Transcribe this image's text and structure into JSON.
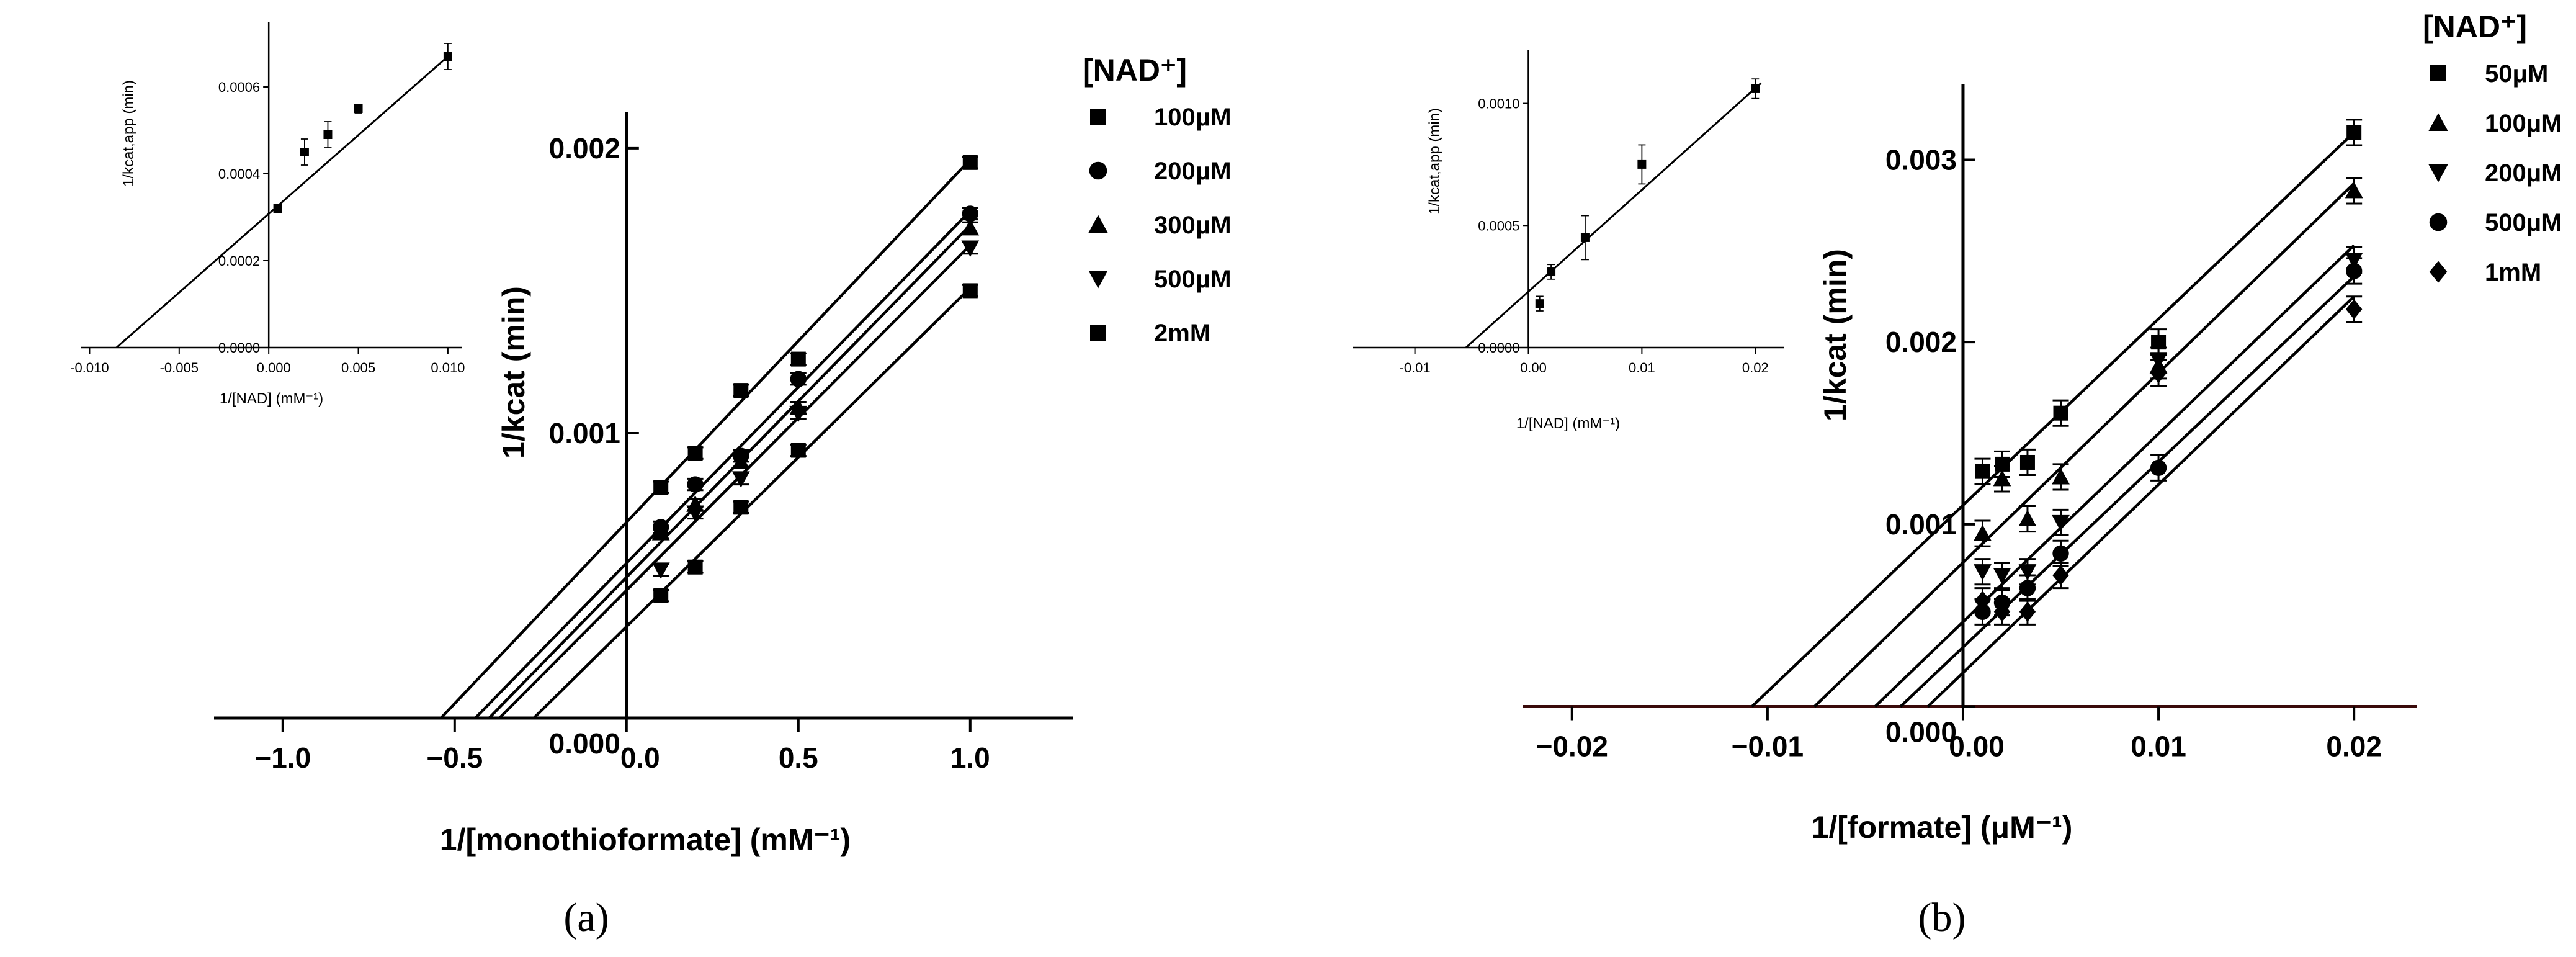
{
  "chart_data": [
    {
      "panel": "a",
      "type": "scatter",
      "panel_label": "(a)",
      "xlabel": "1/[monothioformate] (mM⁻¹)",
      "ylabel": "1/kcat (min)",
      "xlim": [
        -1.2,
        1.3
      ],
      "ylim": [
        -5e-05,
        0.00215
      ],
      "xticks": [
        {
          "v": -1.0,
          "label": "−1.0"
        },
        {
          "v": -0.5,
          "label": "−0.5"
        },
        {
          "v": 0.0,
          "label": "0.0"
        },
        {
          "v": 0.5,
          "label": "0.5"
        },
        {
          "v": 1.0,
          "label": "1.0"
        }
      ],
      "yticks": [
        {
          "v": 0.0,
          "label": "0.000"
        },
        {
          "v": 0.001,
          "label": "0.001"
        },
        {
          "v": 0.002,
          "label": "0.002"
        }
      ],
      "legend_title": "[NAD⁺]",
      "x": [
        0.1,
        0.2,
        0.333,
        0.5,
        1.0
      ],
      "series": [
        {
          "name": "100μM",
          "marker": "square",
          "fill": true,
          "values": [
            0.00081,
            0.00093,
            0.00115,
            0.00126,
            0.00195
          ],
          "err": 2e-05
        },
        {
          "name": "200μM",
          "marker": "circle",
          "fill": true,
          "values": [
            0.00067,
            0.00082,
            0.00092,
            0.00119,
            0.00177
          ],
          "err": 2e-05
        },
        {
          "name": "300μM",
          "marker": "triangle-up",
          "fill": true,
          "values": [
            0.00065,
            0.00075,
            0.0009,
            0.00109,
            0.00172
          ],
          "err": 2e-05
        },
        {
          "name": "500μM",
          "marker": "triangle-down",
          "fill": true,
          "values": [
            0.00052,
            0.00072,
            0.00084,
            0.00107,
            0.00165
          ],
          "err": 2e-05
        },
        {
          "name": "2mM",
          "marker": "square",
          "fill": true,
          "values": [
            0.00043,
            0.00053,
            0.00074,
            0.00094,
            0.0015
          ],
          "err": 2e-05
        }
      ],
      "fits": [
        {
          "xint": -0.54,
          "y1": 0.00196
        },
        {
          "xint": -0.44,
          "y1": 0.00178
        },
        {
          "xint": -0.4,
          "y1": 0.00173
        },
        {
          "xint": -0.37,
          "y1": 0.00166
        },
        {
          "xint": -0.27,
          "y1": 0.00151
        }
      ],
      "inset": {
        "xlabel": "1/[NAD] (mM⁻¹)",
        "ylabel": "1/kcat,app (min)",
        "xlim": [
          -0.0105,
          0.0108
        ],
        "ylim": [
          0.0,
          0.00075
        ],
        "xticks": [
          {
            "v": -0.01,
            "label": "-0.010"
          },
          {
            "v": -0.005,
            "label": "-0.005"
          },
          {
            "v": 0.0,
            "label": "0.000"
          },
          {
            "v": 0.005,
            "label": "0.005"
          },
          {
            "v": 0.01,
            "label": "0.010"
          }
        ],
        "yticks": [
          {
            "v": 0.0,
            "label": "0.0000"
          },
          {
            "v": 0.0002,
            "label": "0.0002"
          },
          {
            "v": 0.0004,
            "label": "0.0004"
          },
          {
            "v": 0.0006,
            "label": "0.0006"
          }
        ],
        "x": [
          0.0005,
          0.002,
          0.0033,
          0.005,
          0.01
        ],
        "values": [
          0.00032,
          0.00045,
          0.00049,
          0.00055,
          0.00067
        ],
        "err": [
          1e-05,
          3e-05,
          3e-05,
          1e-05,
          3e-05
        ],
        "fit": {
          "x0": -0.0085,
          "x1": 0.0101
        }
      }
    },
    {
      "panel": "b",
      "type": "scatter",
      "panel_label": "(b)",
      "xlabel": "1/[formate] (μM⁻¹)",
      "ylabel": "1/kcat (min)",
      "xlim": [
        -0.0225,
        0.0232
      ],
      "ylim": [
        -8e-05,
        0.0034
      ],
      "xticks": [
        {
          "v": -0.02,
          "label": "−0.02"
        },
        {
          "v": -0.01,
          "label": "−0.01"
        },
        {
          "v": 0.0,
          "label": "0.00"
        },
        {
          "v": 0.01,
          "label": "0.01"
        },
        {
          "v": 0.02,
          "label": "0.02"
        }
      ],
      "yticks": [
        {
          "v": 0.0,
          "label": "0.000"
        },
        {
          "v": 0.001,
          "label": "0.001"
        },
        {
          "v": 0.002,
          "label": "0.002"
        },
        {
          "v": 0.003,
          "label": "0.003"
        }
      ],
      "legend_title": "[NAD⁺]",
      "x": [
        0.001,
        0.002,
        0.0033,
        0.005,
        0.01,
        0.02
      ],
      "series": [
        {
          "name": "50μM",
          "marker": "square",
          "fill": true,
          "values": [
            0.00129,
            0.00133,
            0.00134,
            0.00161,
            0.002,
            0.00315
          ],
          "err": 7e-05
        },
        {
          "name": "100μM",
          "marker": "triangle-up",
          "fill": true,
          "values": [
            0.00095,
            0.00125,
            0.00103,
            0.00126,
            0.00187,
            0.00283
          ],
          "err": 7e-05
        },
        {
          "name": "200μM",
          "marker": "triangle-down",
          "fill": true,
          "values": [
            0.00074,
            0.00072,
            0.00074,
            0.00101,
            0.0019,
            0.00245
          ],
          "err": 7e-05
        },
        {
          "name": "500μM",
          "marker": "circle",
          "fill": true,
          "values": [
            0.00052,
            0.00057,
            0.00065,
            0.00084,
            0.00131,
            0.00239
          ],
          "err": 7e-05
        },
        {
          "name": "1mM",
          "marker": "diamond",
          "fill": true,
          "values": [
            0.00058,
            0.00052,
            0.00052,
            0.00072,
            0.00183,
            0.00218
          ],
          "err": 7e-05
        }
      ],
      "fits": [
        {
          "xint": -0.0108,
          "y1": 0.00315
        },
        {
          "xint": -0.0076,
          "y1": 0.00287
        },
        {
          "xint": -0.0045,
          "y1": 0.00253
        },
        {
          "xint": -0.0032,
          "y1": 0.00236
        },
        {
          "xint": -0.0018,
          "y1": 0.00225
        }
      ],
      "inset": {
        "xlabel": "1/[NAD] (mM⁻¹)",
        "ylabel": "1/kcat,app (min)",
        "xlim": [
          -0.0155,
          0.0225
        ],
        "ylim": [
          0.0,
          0.00122
        ],
        "xticks": [
          {
            "v": -0.01,
            "label": "-0.01"
          },
          {
            "v": 0.0,
            "label": "0.00"
          },
          {
            "v": 0.01,
            "label": "0.01"
          },
          {
            "v": 0.02,
            "label": "0.02"
          }
        ],
        "yticks": [
          {
            "v": 0.0,
            "label": "0.0000"
          },
          {
            "v": 0.0005,
            "label": "0.0005"
          },
          {
            "v": 0.001,
            "label": "0.0010"
          }
        ],
        "x": [
          0.001,
          0.002,
          0.005,
          0.01,
          0.02
        ],
        "values": [
          0.00018,
          0.00031,
          0.00045,
          0.00075,
          0.00106
        ],
        "err": [
          3e-05,
          3e-05,
          9e-05,
          8e-05,
          4e-05
        ],
        "fit": {
          "x0": -0.0055,
          "x1": 0.0205
        }
      }
    }
  ]
}
